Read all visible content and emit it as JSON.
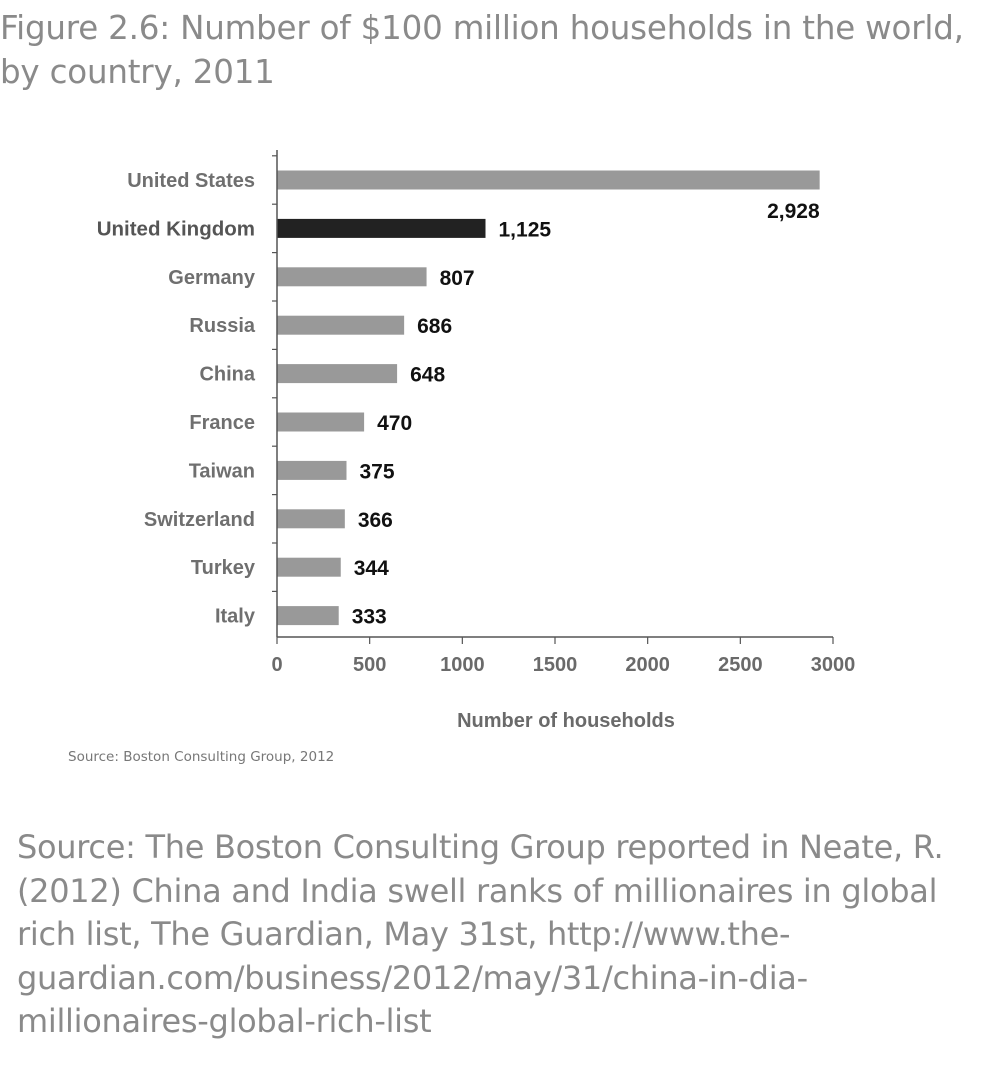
{
  "figure": {
    "title": "Figure 2.6: Number of $100 million households in the world,\nby country, 2011"
  },
  "chart_source": "Source: Boston Consulting Group, 2012",
  "page_source": "Source:  The Boston Consulting Group reported in Neate, R. (2012) China and India swell ranks of millionaires in global rich list, The Guardian, May 31st, http://www.the-guardian.com/business/2012/may/31/china-in-dia-millionaires-global-rich-list",
  "colors": {
    "bar_default": "#999999",
    "bar_highlight": "#222222",
    "axis": "#555555",
    "label_default": "#6f6f6f",
    "label_highlight": "#555555",
    "value_text": "#111111"
  },
  "chart_data": {
    "type": "bar",
    "orientation": "horizontal",
    "categories": [
      "United States",
      "United Kingdom",
      "Germany",
      "Russia",
      "China",
      "France",
      "Taiwan",
      "Switzerland",
      "Turkey",
      "Italy"
    ],
    "values": [
      2928,
      1125,
      807,
      686,
      648,
      470,
      375,
      366,
      344,
      333
    ],
    "value_labels": [
      "2,928",
      "1,125",
      "807",
      "686",
      "648",
      "470",
      "375",
      "366",
      "344",
      "333"
    ],
    "highlighted_category": "United Kingdom",
    "xlabel": "Number of households",
    "xlim": [
      0,
      3000
    ],
    "x_ticks": [
      0,
      500,
      1000,
      1500,
      2000,
      2500,
      3000
    ],
    "x_tick_labels": [
      "0",
      "500",
      "1000",
      "1500",
      "2000",
      "2500",
      "3000"
    ],
    "grid": false,
    "legend": "none"
  }
}
